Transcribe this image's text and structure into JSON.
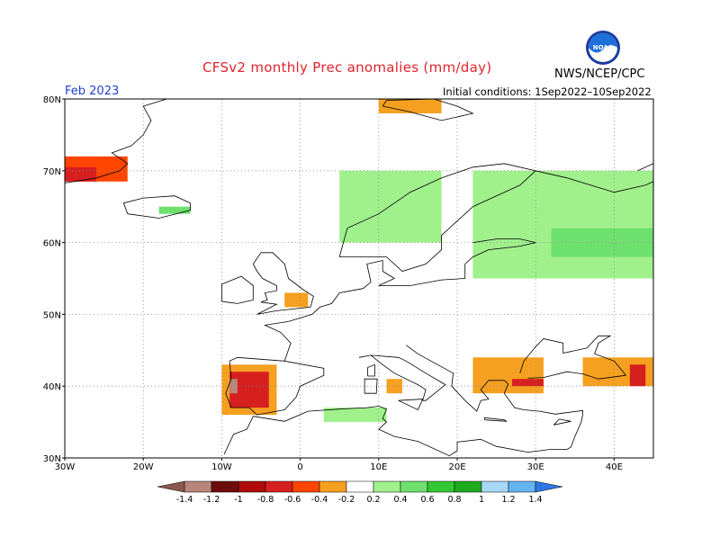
{
  "header": {
    "title": "CFSv2 monthly Prec anomalies (mm/day)",
    "month": "Feb 2023",
    "initial_conditions": "Initial conditions: 1Sep2022–10Sep2022",
    "agency": "NWS/NCEP/CPC",
    "logo_text": "NOAA"
  },
  "map": {
    "lon_range": [
      -30,
      45
    ],
    "lat_range": [
      30,
      80
    ],
    "lon_ticks": [
      "30W",
      "20W",
      "10W",
      "0",
      "10E",
      "20E",
      "30E",
      "40E"
    ],
    "lat_ticks": [
      "80N",
      "70N",
      "60N",
      "50N",
      "40N",
      "30N"
    ],
    "anomaly_regions": [
      {
        "name": "greenland-east",
        "lon": [
          -30,
          -22
        ],
        "lat": [
          68.5,
          72
        ],
        "level": -0.6
      },
      {
        "name": "greenland-east-core",
        "lon": [
          -30,
          -26
        ],
        "lat": [
          68.5,
          70.5
        ],
        "level": -0.8
      },
      {
        "name": "svalbard",
        "lon": [
          10,
          18
        ],
        "lat": [
          78,
          80
        ],
        "level": -0.4
      },
      {
        "name": "iceland",
        "lon": [
          -18,
          -14
        ],
        "lat": [
          64,
          65
        ],
        "level": 0.4
      },
      {
        "name": "norway-coast",
        "lon": [
          5,
          18
        ],
        "lat": [
          60,
          70
        ],
        "level": 0.2
      },
      {
        "name": "russia-nw",
        "lon": [
          22,
          45
        ],
        "lat": [
          55,
          70
        ],
        "level": 0.2
      },
      {
        "name": "russia-core",
        "lon": [
          32,
          45
        ],
        "lat": [
          58,
          62
        ],
        "level": 0.4
      },
      {
        "name": "uk-east",
        "lon": [
          -2,
          1
        ],
        "lat": [
          51,
          53
        ],
        "level": -0.4
      },
      {
        "name": "iberia-west",
        "lon": [
          -10,
          -3
        ],
        "lat": [
          36,
          43
        ],
        "level": -0.4
      },
      {
        "name": "iberia-core",
        "lon": [
          -9,
          -4
        ],
        "lat": [
          37,
          42
        ],
        "level": -0.8
      },
      {
        "name": "iberia-peak",
        "lon": [
          -9,
          -8
        ],
        "lat": [
          39,
          41
        ],
        "level": -1.4
      },
      {
        "name": "balkans-east",
        "lon": [
          22,
          31
        ],
        "lat": [
          39,
          44
        ],
        "level": -0.4
      },
      {
        "name": "turkey-nw",
        "lon": [
          27,
          31
        ],
        "lat": [
          40,
          41
        ],
        "level": -0.8
      },
      {
        "name": "caucasus",
        "lon": [
          36,
          45
        ],
        "lat": [
          40,
          44
        ],
        "level": -0.4
      },
      {
        "name": "caucasus-core",
        "lon": [
          42,
          44
        ],
        "lat": [
          40,
          43
        ],
        "level": -0.8
      },
      {
        "name": "algeria",
        "lon": [
          3,
          11
        ],
        "lat": [
          35,
          37
        ],
        "level": 0.2
      },
      {
        "name": "italy-south",
        "lon": [
          11,
          13
        ],
        "lat": [
          39,
          41
        ],
        "level": -0.4
      }
    ]
  },
  "colorbar": {
    "labels": [
      "-1.4",
      "-1.2",
      "-1",
      "-0.8",
      "-0.6",
      "-0.4",
      "-0.2",
      "0.2",
      "0.4",
      "0.6",
      "0.8",
      "1",
      "1.2",
      "1.4"
    ],
    "colors": [
      "#8b5a4f",
      "#b8867a",
      "#6e0c0c",
      "#b00a0a",
      "#d61f1f",
      "#ff4500",
      "#f5a020",
      "#ffffff",
      "#a0f08c",
      "#6ee06e",
      "#32c832",
      "#1eaa1e",
      "#a8d8f8",
      "#64b4f0",
      "#2d78e6"
    ]
  }
}
